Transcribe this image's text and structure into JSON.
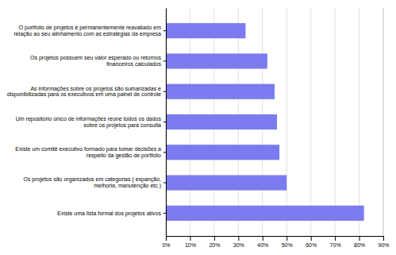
{
  "chart_data": {
    "type": "bar",
    "orientation": "horizontal",
    "categories": [
      "O portfolio de projetos é permanentemente reavaliado em\nrelação ao seu alinhamento com as estratégias da empresa",
      "Os projetos possuem seu valor esperado ou retornos\nfinanceiros calculados",
      "As informações sobre os projetos são sumarizadas e\ndisponibilizadas para os executivos em uma painel de controle",
      "Um repositório único de informações reúne todos os dados\nsobre os projetos para consulta",
      "Existe um comitê executivo formado para tomar decisões a\nrespeito da gestão de portfolio",
      "Os projetos são organizados em categorias ( expanção,\nmelhoria, manutenção etc.)",
      "Existe uma lista formal dos projetos ativos"
    ],
    "values": [
      33,
      42,
      45,
      46,
      47,
      50,
      82
    ],
    "color": "#7b7bef",
    "xlim": [
      0,
      90
    ],
    "xticks": [
      {
        "value": 0,
        "label": "0%"
      },
      {
        "value": 10,
        "label": "10%"
      },
      {
        "value": 20,
        "label": "20%"
      },
      {
        "value": 30,
        "label": "30%"
      },
      {
        "value": 40,
        "label": "40%"
      },
      {
        "value": 50,
        "label": "50%"
      },
      {
        "value": 60,
        "label": "60%"
      },
      {
        "value": 70,
        "label": "70%"
      },
      {
        "value": 80,
        "label": "80%"
      },
      {
        "value": 90,
        "label": "90%"
      }
    ],
    "grid": true
  }
}
